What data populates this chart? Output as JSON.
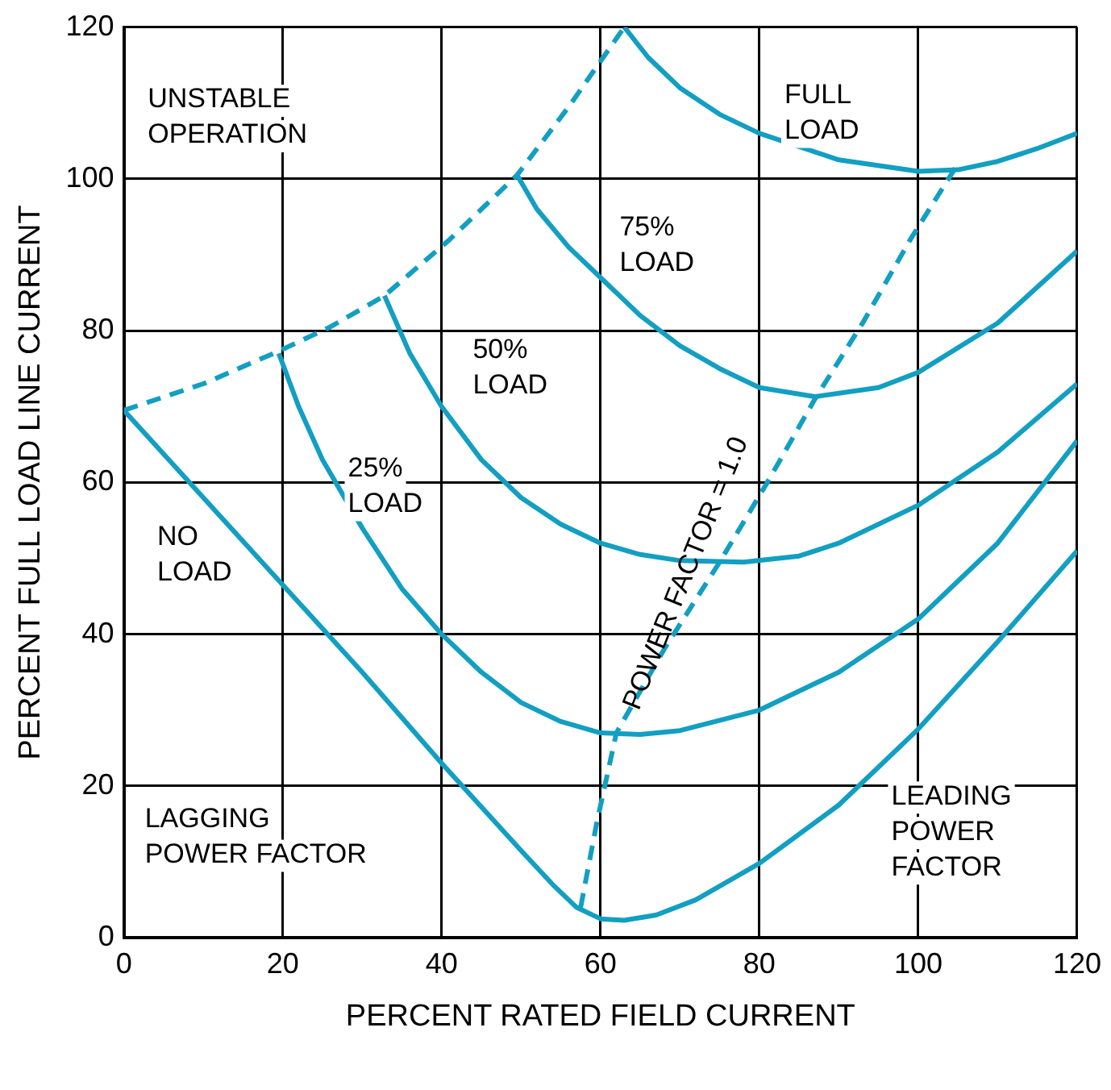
{
  "chart_data": {
    "type": "line",
    "xlabel": "PERCENT RATED FIELD CURRENT",
    "ylabel": "PERCENT FULL LOAD LINE CURRENT",
    "xlim": [
      0,
      120
    ],
    "ylim": [
      0,
      120
    ],
    "xticks": [
      0,
      20,
      40,
      60,
      80,
      100,
      120
    ],
    "yticks": [
      0,
      20,
      40,
      60,
      80,
      100,
      120
    ],
    "grid": true,
    "legend": false,
    "marker": "none",
    "series": [
      {
        "color": "#129fc2",
        "line_style": "solid",
        "x": [
          0,
          10,
          20,
          30,
          40,
          50,
          54,
          57,
          60,
          63,
          67,
          72,
          80,
          90,
          100,
          110,
          120
        ],
        "values": [
          69.5,
          58,
          46.5,
          35,
          23,
          11.5,
          7,
          4,
          2.5,
          2.3,
          3,
          5,
          9.8,
          17.5,
          27.5,
          39,
          51
        ]
      },
      {
        "color": "#129fc2",
        "line_style": "solid",
        "x": [
          19.5,
          22,
          25,
          30,
          35,
          40,
          45,
          50,
          55,
          60,
          65,
          70,
          80,
          90,
          100,
          110,
          120
        ],
        "values": [
          77,
          70,
          63,
          54,
          46,
          40,
          35,
          31,
          28.5,
          27,
          26.8,
          27.3,
          30,
          35,
          42,
          52,
          65.5
        ]
      },
      {
        "color": "#129fc2",
        "line_style": "solid",
        "x": [
          32.8,
          36,
          40,
          45,
          50,
          55,
          60,
          65,
          70,
          78,
          85,
          90,
          100,
          110,
          120
        ],
        "values": [
          84.6,
          77,
          70,
          63,
          58,
          54.5,
          52,
          50.5,
          49.7,
          49.5,
          50.3,
          52,
          57,
          64,
          73
        ]
      },
      {
        "color": "#129fc2",
        "line_style": "solid",
        "x": [
          49.5,
          52,
          56,
          60,
          65,
          70,
          75,
          80,
          87,
          95,
          100,
          110,
          120
        ],
        "values": [
          100.5,
          96,
          91,
          87,
          82,
          78,
          75,
          72.5,
          71.3,
          72.5,
          74.5,
          81,
          90.5
        ]
      },
      {
        "color": "#129fc2",
        "line_style": "solid",
        "x": [
          63,
          66,
          70,
          75,
          80,
          90,
          100,
          105,
          110,
          115,
          120
        ],
        "values": [
          120,
          116,
          112,
          108.5,
          106,
          102.5,
          101,
          101.2,
          102.3,
          104,
          106
        ]
      },
      {
        "color": "#129fc2",
        "line_style": "dashed",
        "x": [
          0,
          10,
          19.5,
          26,
          32.8,
          41,
          49.5,
          56,
          63
        ],
        "values": [
          69.5,
          73,
          77.3,
          80.5,
          84.6,
          92,
          100.5,
          109.5,
          120
        ]
      },
      {
        "color": "#129fc2",
        "line_style": "dashed",
        "x": [
          57.5,
          59.5,
          62,
          68,
          75,
          81,
          87,
          93,
          99,
          105
        ],
        "values": [
          4,
          15,
          27,
          38,
          49.5,
          60,
          71,
          81,
          92,
          102
        ]
      }
    ],
    "annotations": [
      "UNSTABLE\nOPERATION",
      "FULL\nLOAD",
      "75%\nLOAD",
      "50%\nLOAD",
      "25%\nLOAD",
      "NO\nLOAD",
      "POWER FACTOR = 1.0",
      "LAGGING\nPOWER FACTOR",
      "LEADING\nPOWER\nFACTOR"
    ]
  }
}
